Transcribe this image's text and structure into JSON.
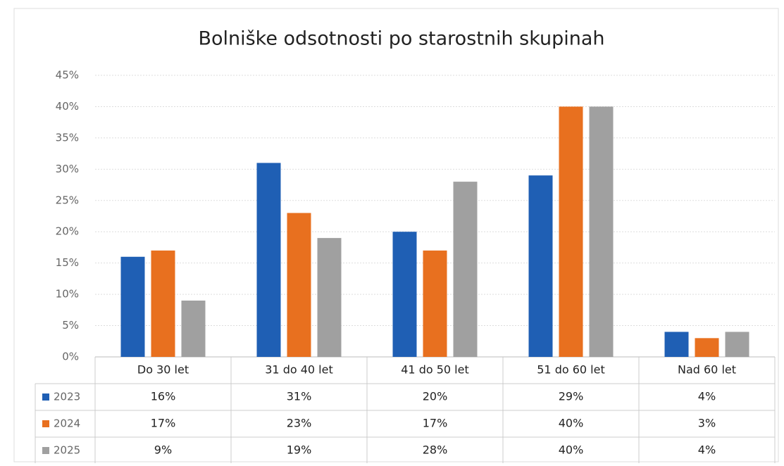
{
  "chart_data": {
    "type": "bar",
    "title": "Bolniške odsotnosti po starostnih skupinah",
    "categories": [
      "Do 30 let",
      "31 do 40 let",
      "41 do 50 let",
      "51 do 60 let",
      "Nad 60 let"
    ],
    "series": [
      {
        "name": "2023",
        "color": "#1f5fb4",
        "values": [
          16,
          31,
          20,
          29,
          4
        ],
        "value_labels": [
          "16%",
          "31%",
          "20%",
          "29%",
          "4%"
        ]
      },
      {
        "name": "2024",
        "color": "#e8701f",
        "values": [
          17,
          23,
          17,
          40,
          3
        ],
        "value_labels": [
          "17%",
          "23%",
          "17%",
          "40%",
          "3%"
        ]
      },
      {
        "name": "2025",
        "color": "#a0a0a0",
        "values": [
          9,
          19,
          28,
          40,
          4
        ],
        "value_labels": [
          "9%",
          "19%",
          "28%",
          "40%",
          "4%"
        ]
      }
    ],
    "ylim": [
      0,
      45
    ],
    "yticks": [
      {
        "value": 0,
        "label": "0%"
      },
      {
        "value": 5,
        "label": "5%"
      },
      {
        "value": 10,
        "label": "10%"
      },
      {
        "value": 15,
        "label": "15%"
      },
      {
        "value": 20,
        "label": "20%"
      },
      {
        "value": 25,
        "label": "25%"
      },
      {
        "value": 30,
        "label": "30%"
      },
      {
        "value": 35,
        "label": "35%"
      },
      {
        "value": 40,
        "label": "40%"
      },
      {
        "value": 45,
        "label": "45%"
      }
    ],
    "grid": true
  }
}
